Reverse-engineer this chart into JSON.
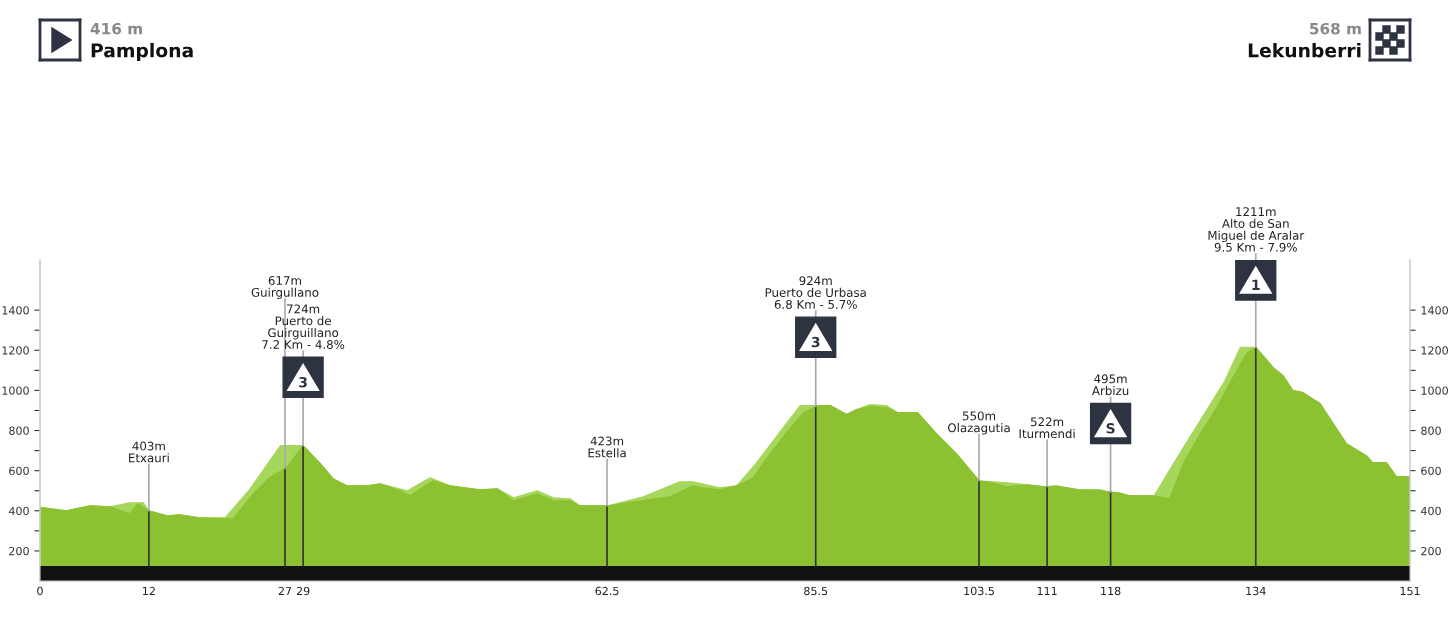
{
  "chart_data": {
    "type": "area",
    "series": [
      {
        "color": "#a6d65b",
        "x": [
          0,
          2.9,
          5.5,
          7.7,
          9.9,
          11.4,
          12,
          14,
          15.4,
          17.6,
          20.4,
          23,
          26.5,
          29,
          30.9,
          32.3,
          33.8,
          36,
          37.5,
          40.5,
          43,
          45.2,
          48.5,
          50.4,
          52.2,
          54.8,
          56.6,
          58.4,
          59.5,
          62.6,
          66.5,
          70.5,
          72,
          74.9,
          76.8,
          79,
          81.5,
          83.8,
          87.1,
          88.9,
          90,
          91.5,
          93.3,
          94.5,
          96.7,
          98.8,
          101,
          103.5,
          106.6,
          108.8,
          110.8,
          114.6,
          117.8,
          120.1,
          122.8,
          125,
          128,
          130.5,
          132.3,
          134,
          135.9,
          138.1,
          141.1,
          146,
          148.4,
          149.5,
          151
        ],
        "values": [
          417,
          400,
          425,
          420,
          440,
          440,
          400,
          375,
          380,
          365,
          365,
          500,
          725,
          725,
          635,
          560,
          525,
          525,
          535,
          500,
          565,
          525,
          505,
          510,
          465,
          500,
          465,
          460,
          425,
          425,
          470,
          545,
          545,
          515,
          525,
          640,
          790,
          925,
          925,
          880,
          905,
          930,
          925,
          890,
          890,
          785,
          685,
          550,
          540,
          530,
          520,
          505,
          495,
          475,
          475,
          640,
          860,
          1040,
          1215,
          1215,
          1115,
          1000,
          935,
          null,
          640,
          570,
          570
        ]
      },
      {
        "color": "#8cc232",
        "x": [
          0,
          2.9,
          5.5,
          7.7,
          9.9,
          10.8,
          12,
          14,
          15.4,
          17.6,
          21.3,
          23.5,
          25.3,
          27.2,
          29,
          30.9,
          32.3,
          33.8,
          36,
          37.5,
          39.7,
          40.8,
          43.3,
          45.2,
          48.5,
          50.4,
          52.2,
          54.8,
          56.6,
          58.4,
          59.5,
          62.6,
          67.6,
          69.4,
          72,
          73,
          74.9,
          76.8,
          78.6,
          80.5,
          82.3,
          84.1,
          85.7,
          87.1,
          88.9,
          90,
          91.5,
          93.3,
          94.5,
          96.7,
          98.8,
          101,
          103.5,
          105,
          106.6,
          108.8,
          110.8,
          112,
          114.6,
          116.8,
          117.8,
          119,
          120.1,
          122.7,
          124.5,
          126,
          127.9,
          129.7,
          131.5,
          133,
          134,
          135.9,
          137,
          138.1,
          139.2,
          141.1,
          144,
          146.2,
          146.9,
          148.4,
          149.5,
          151
        ],
        "values": [
          417,
          400,
          425,
          420,
          385,
          435,
          400,
          375,
          380,
          365,
          360,
          485,
          565,
          617,
          725,
          635,
          560,
          525,
          525,
          535,
          500,
          475,
          550,
          525,
          505,
          510,
          450,
          485,
          450,
          450,
          425,
          425,
          460,
          470,
          525,
          515,
          505,
          525,
          565,
          685,
          790,
          885,
          925,
          925,
          880,
          905,
          920,
          915,
          890,
          890,
          785,
          685,
          550,
          540,
          520,
          530,
          520,
          525,
          505,
          505,
          495,
          490,
          475,
          475,
          460,
          635,
          785,
          915,
          1065,
          1185,
          1215,
          1115,
          1075,
          1000,
          990,
          935,
          735,
          675,
          640,
          640,
          570,
          570
        ]
      }
    ],
    "xlim": [
      0,
      151
    ],
    "xticks": [
      0,
      12,
      27,
      29,
      62.5,
      85.5,
      103.5,
      111,
      118,
      134,
      151
    ],
    "ylim": [
      50,
      1650
    ],
    "yticks": [
      200,
      {
        "value": 300,
        "label": null
      },
      400,
      {
        "value": 500,
        "label": null
      },
      600,
      {
        "value": 700,
        "label": null
      },
      800,
      {
        "value": 900,
        "label": null
      },
      1000,
      {
        "value": 1100,
        "label": null
      },
      1200,
      {
        "value": 1300,
        "label": null
      },
      1400
    ],
    "y2lim": [
      50,
      1650
    ],
    "y2ticks": [
      200,
      {
        "value": 300,
        "label": null
      },
      400,
      {
        "value": 500,
        "label": null
      },
      600,
      {
        "value": 700,
        "label": null
      },
      800,
      {
        "value": 900,
        "label": null
      },
      1000,
      {
        "value": 1100,
        "label": null
      },
      1200,
      {
        "value": 1300,
        "label": null
      },
      1400
    ],
    "ref_lines": [
      {
        "axis": "x",
        "value": 12,
        "label": "403m\nEtxauri"
      },
      {
        "axis": "x",
        "value": 29,
        "label": "724m\nPuerto de\nGuirguillano\n7.2 Km - 4.8%"
      },
      {
        "axis": "x",
        "value": 27,
        "label": "617m\nGuirgullano"
      },
      {
        "axis": "x",
        "value": 62.5,
        "label": "423m\nEstella"
      },
      {
        "axis": "x",
        "value": 85.5,
        "label": "924m\nPuerto de Urbasa\n6.8 Km - 5.7%"
      },
      {
        "axis": "x",
        "value": 103.5,
        "label": "550m\nOlazagutia"
      },
      {
        "axis": "x",
        "value": 111,
        "label": "522m\nIturmendi"
      },
      {
        "axis": "x",
        "value": 118,
        "label": "495m\nArbizu"
      },
      {
        "axis": "x",
        "value": 134,
        "label": "1211m\nAlto de San\nMiguel de Aralar\n9.5 Km - 7.9%"
      }
    ],
    "bands": [
      {
        "axis": "y",
        "from": 50,
        "to": 125,
        "color": "#111111"
      }
    ],
    "annotations": [
      "416 m",
      "Pamplona",
      "568 m",
      "Lekunberri",
      {
        "text": "3",
        "x": 29,
        "y": 1065
      },
      {
        "text": "3",
        "x": 85.5,
        "y": 1265
      },
      {
        "text": "S",
        "x": 118,
        "y": 835
      },
      {
        "text": "1",
        "x": 134,
        "y": 1550
      }
    ],
    "grid": false
  }
}
